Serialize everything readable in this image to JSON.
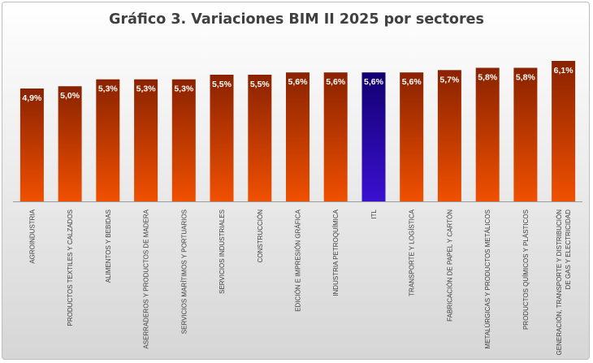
{
  "chart_data": {
    "type": "bar",
    "title": "Gráfico 3. Variaciones BIM II 2025 por sectores",
    "categories": [
      [
        "AGROINDUSTRIA"
      ],
      [
        "PRODUCTOS TEXTILES Y CALZADOS"
      ],
      [
        "ALIMENTOS Y BEBIDAS"
      ],
      [
        "ASERRADEROS Y PRODUCTOS DE MADERA"
      ],
      [
        "SERVICIOS MARÍTIMOS Y PORTUARIOS"
      ],
      [
        "SERVICIOS INDUSTRIALES"
      ],
      [
        "CONSTRUCCIÓN"
      ],
      [
        "EDICIÓN E IMPRESIÓN GRÁFICA"
      ],
      [
        "INDUSTRIA PETROQUÍMICA"
      ],
      [
        "ITL"
      ],
      [
        "TRANSPORTE Y LOGÍSTICA"
      ],
      [
        "FABRICACIÓN DE PAPEL Y CARTÓN"
      ],
      [
        "METALÚRGICAS Y PRODUCTOS METÁLICOS"
      ],
      [
        "PRODUCTOS QUÍMICOS Y PLÁSTICOS"
      ],
      [
        "GENERACIÓN, TRANSPORTE Y DISTRIBUCIÓN",
        "DE GAS Y ELECTRICIDAD"
      ]
    ],
    "values": [
      4.9,
      5.0,
      5.3,
      5.3,
      5.3,
      5.5,
      5.5,
      5.6,
      5.6,
      5.6,
      5.6,
      5.7,
      5.8,
      5.8,
      6.1
    ],
    "data_labels": [
      "4,9%",
      "5,0%",
      "5,3%",
      "5,3%",
      "5,3%",
      "5,5%",
      "5,5%",
      "5,6%",
      "5,6%",
      "5,6%",
      "5,6%",
      "5,7%",
      "5,8%",
      "5,8%",
      "6,1%"
    ],
    "highlight_index": 9,
    "ylim": [
      0,
      6.1
    ],
    "grid": false,
    "legend": "none",
    "colors": {
      "bar_top": "#8a2200",
      "bar_bottom": "#f05000",
      "highlight_top": "#120070",
      "highlight_bottom": "#3a10d0",
      "axis": "#9a9a9a",
      "category_text": "#404040",
      "label_text": "#ffffff"
    }
  }
}
